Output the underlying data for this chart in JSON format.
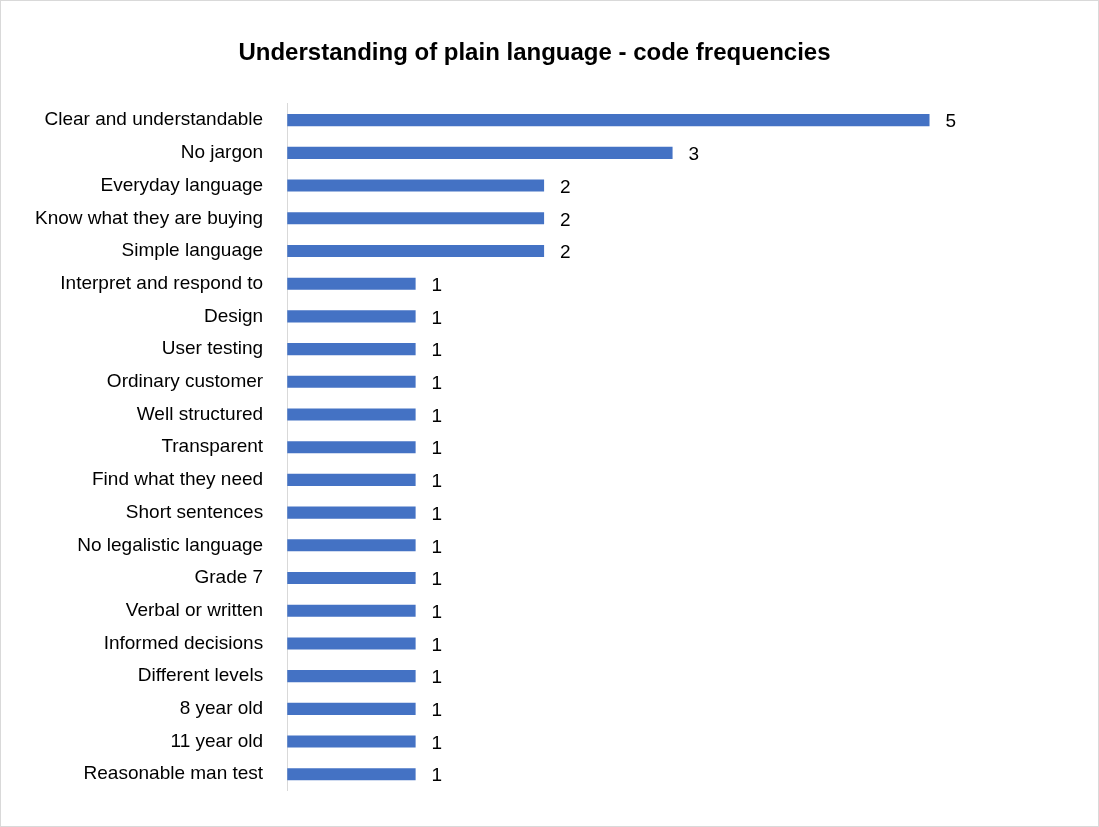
{
  "chart_data": {
    "type": "bar",
    "orientation": "horizontal",
    "title": "Understanding of plain language - code frequencies",
    "categories": [
      "Clear and understandable",
      "No jargon",
      "Everyday language",
      "Know what they are buying",
      "Simple language",
      "Interpret and respond to",
      "Design",
      "User testing",
      "Ordinary customer",
      "Well structured",
      "Transparent",
      "Find what they need",
      "Short sentences",
      "No legalistic language",
      "Grade 7",
      "Verbal or written",
      "Informed decisions",
      "Different levels",
      "8 year old",
      "11 year old",
      "Reasonable man test"
    ],
    "values": [
      5,
      3,
      2,
      2,
      2,
      1,
      1,
      1,
      1,
      1,
      1,
      1,
      1,
      1,
      1,
      1,
      1,
      1,
      1,
      1,
      1
    ],
    "color": "#4472c4",
    "data_labels": true
  }
}
